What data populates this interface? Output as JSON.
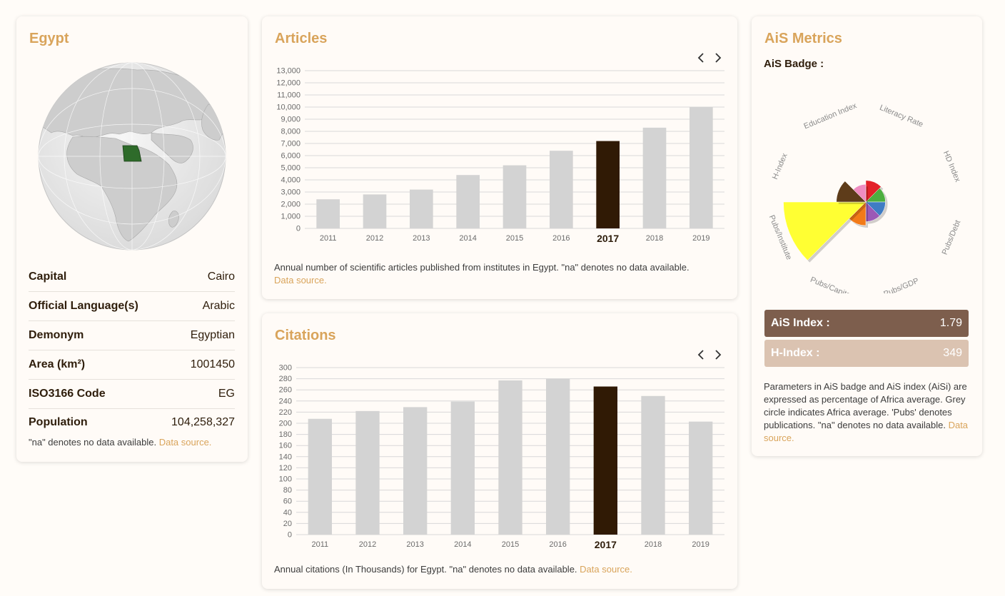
{
  "country": {
    "title": "Egypt",
    "rows": [
      {
        "label": "Capital",
        "value": "Cairo"
      },
      {
        "label": "Official Language(s)",
        "value": "Arabic"
      },
      {
        "label": "Demonym",
        "value": "Egyptian"
      },
      {
        "label": "Area (km²)",
        "value": "1001450"
      },
      {
        "label": "ISO3166 Code",
        "value": "EG"
      },
      {
        "label": "Population",
        "value": "104,258,327"
      }
    ],
    "note": "\"na\" denotes no data available. ",
    "source_link": "Data source."
  },
  "articles": {
    "title": "Articles",
    "note": "Annual number of scientific articles published from institutes in Egypt. \"na\" denotes no data available. ",
    "source_link": "Data source."
  },
  "citations": {
    "title": "Citations",
    "note": "Annual citations (In Thousands) for Egypt. \"na\" denotes no data available. ",
    "source_link": "Data source."
  },
  "ais": {
    "title": "AiS Metrics",
    "badge_label": "AiS Badge :",
    "badge_axes": [
      "Literacy Rate",
      "HD Index",
      "Pubs/Debt",
      "Pubs/GDP",
      "Pubs/Capita",
      "Pubs/Institute",
      "H-Index",
      "Education Index"
    ],
    "badge_wedges": [
      {
        "axis": "Literacy Rate",
        "value": 0.55,
        "color": "#e32128"
      },
      {
        "axis": "HD Index",
        "value": 0.5,
        "color": "#4caf3f"
      },
      {
        "axis": "Pubs/Debt",
        "value": 0.5,
        "color": "#3f7cc4"
      },
      {
        "axis": "Pubs/GDP",
        "value": 0.5,
        "color": "#9b59b6"
      },
      {
        "axis": "Pubs/Capita",
        "value": 0.6,
        "color": "#f27a18"
      },
      {
        "axis": "Pubs/Institute",
        "value": 2.1,
        "color": "#ffff33"
      },
      {
        "axis": "H-Index",
        "value": 0.75,
        "color": "#5e3c1a"
      },
      {
        "axis": "Education Index",
        "value": 0.45,
        "color": "#ef8cc0"
      }
    ],
    "ais_index_label": "AiS Index :",
    "ais_index_value": "1.79",
    "h_index_label": "H-Index :",
    "h_index_value": "349",
    "note": "Parameters in AiS badge and AiS index (AiSi) are expressed as percentage of Africa average. Grey circle indicates Africa average. 'Pubs' denotes publications. \"na\" denotes no data available. ",
    "source_link": "Data source."
  },
  "colors": {
    "accent": "#d9a45b",
    "bar": "#d3d3d3",
    "bar_highlight": "#301a05",
    "ais_bar": "#7d5e4d",
    "h_bar": "#dbc3b1"
  },
  "chart_data": [
    {
      "type": "bar",
      "title": "Articles",
      "categories": [
        "2011",
        "2012",
        "2013",
        "2014",
        "2015",
        "2016",
        "2017",
        "2018",
        "2019"
      ],
      "values": [
        2400,
        2800,
        3200,
        4400,
        5200,
        6400,
        7200,
        8300,
        10000
      ],
      "highlight": "2017",
      "ylim": [
        0,
        13000
      ],
      "yticks": [
        "0",
        "1,000",
        "2,000",
        "3,000",
        "4,000",
        "5,000",
        "6,000",
        "7,000",
        "8,000",
        "9,000",
        "10,000",
        "11,000",
        "12,000",
        "13,000"
      ],
      "grid": true
    },
    {
      "type": "bar",
      "title": "Citations",
      "categories": [
        "2011",
        "2012",
        "2013",
        "2014",
        "2015",
        "2016",
        "2017",
        "2018",
        "2019"
      ],
      "values": [
        208,
        222,
        229,
        239,
        277,
        280,
        266,
        249,
        203
      ],
      "highlight": "2017",
      "ylim": [
        0,
        300
      ],
      "yticks": [
        "0",
        "20",
        "40",
        "60",
        "80",
        "100",
        "120",
        "140",
        "160",
        "180",
        "200",
        "220",
        "240",
        "260",
        "280",
        "300"
      ],
      "grid": true
    }
  ]
}
